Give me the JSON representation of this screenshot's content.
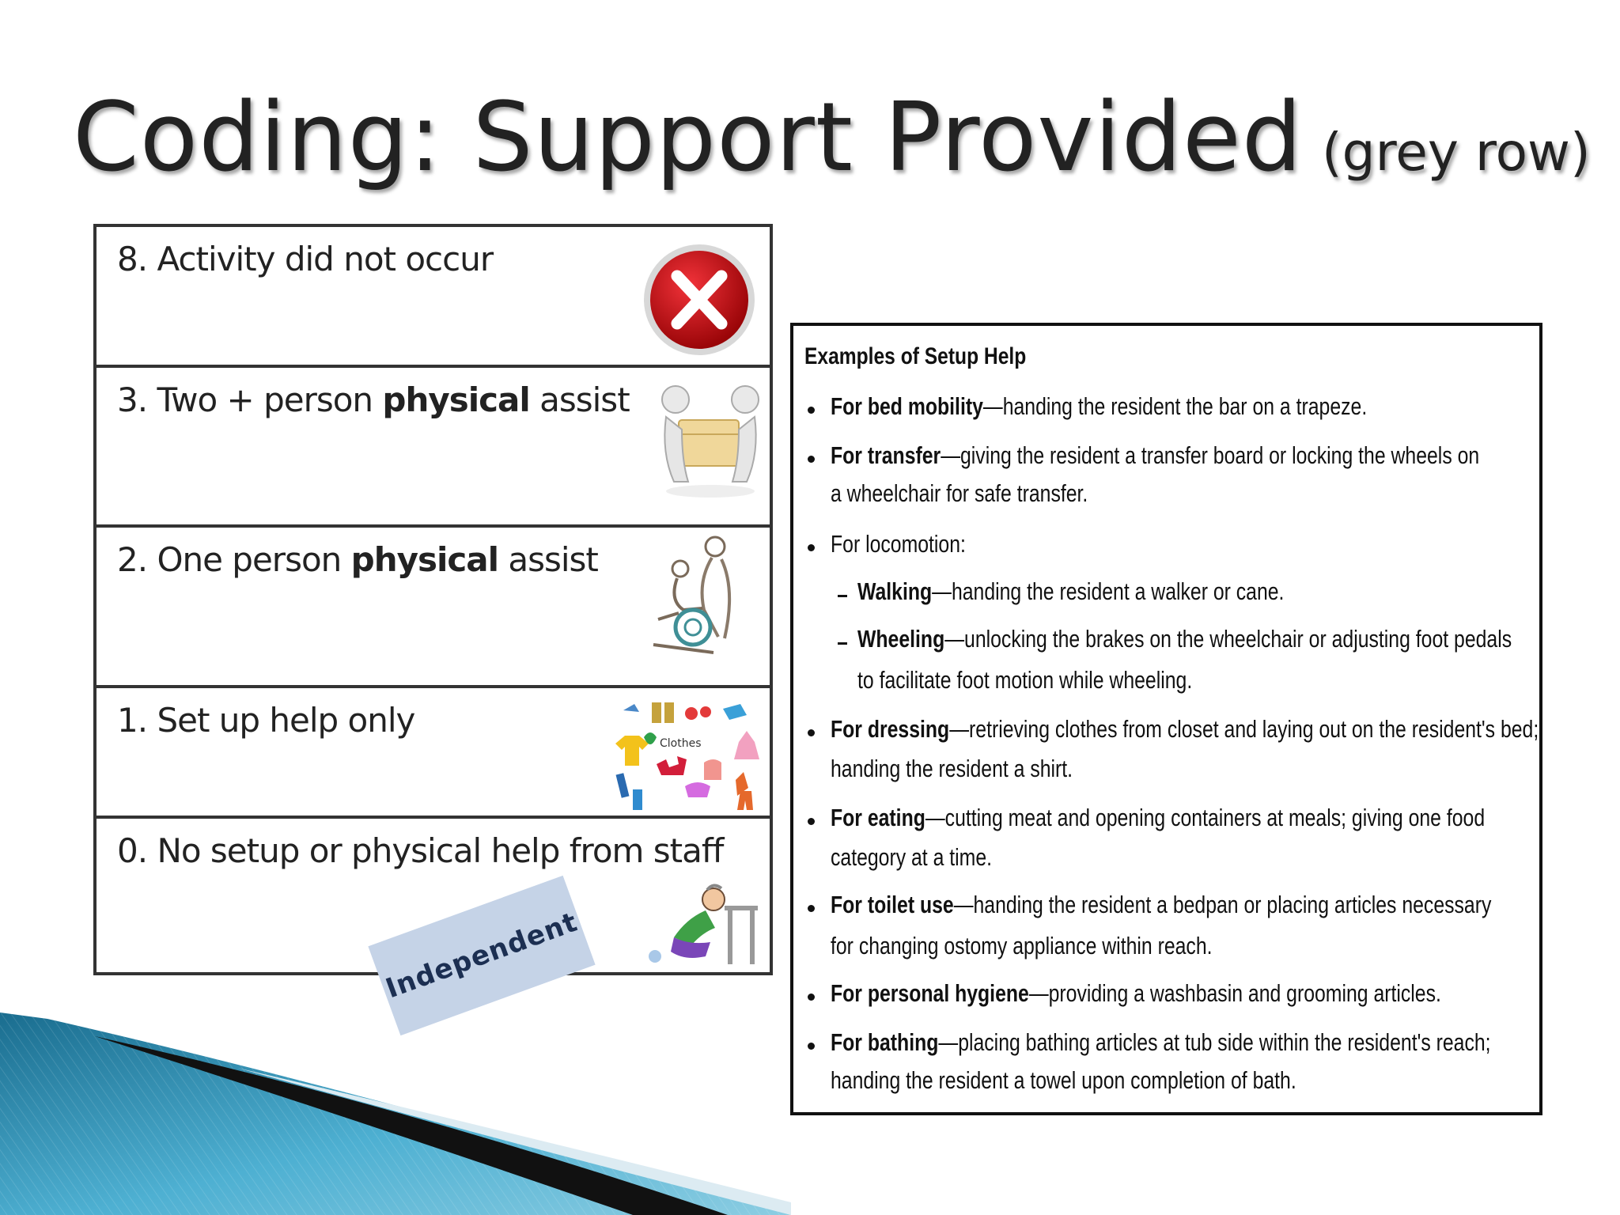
{
  "title": {
    "main": "Coding: Support Provided",
    "sub": "(grey row)"
  },
  "coding_table": {
    "rows": [
      {
        "number": "8.",
        "text": "Activity did not occur",
        "bold": "",
        "after": "",
        "icon": "red-x-icon"
      },
      {
        "number": "3.",
        "text": "Two + person",
        "bold": "physical",
        "after": "assist",
        "icon": "two-person-lift-icon"
      },
      {
        "number": "2.",
        "text": "One person",
        "bold": "physical",
        "after": "assist",
        "icon": "wheelchair-assist-icon"
      },
      {
        "number": "1.",
        "text": "Set up help only",
        "bold": "",
        "after": "",
        "icon": "clothes-icon",
        "icon_text": "Clothes"
      },
      {
        "number": "0.",
        "text": "No setup or physical help from staff",
        "bold": "",
        "after": "",
        "icon": "walker-person-icon"
      }
    ],
    "badge": "Independent"
  },
  "setup_help": {
    "heading": "Examples of Setup Help",
    "items": [
      {
        "bold": "For bed mobility",
        "text": "—handing the resident the bar on a trapeze.",
        "cont": ""
      },
      {
        "bold": "For transfer",
        "text": "—giving the resident a transfer board or locking the wheels on",
        "cont": "a wheelchair for safe transfer."
      },
      {
        "bold": "",
        "text": "For locomotion:",
        "cont": ""
      },
      {
        "bold": "Walking",
        "text": "—handing the resident a walker or cane.",
        "cont": ""
      },
      {
        "bold": "Wheeling",
        "text": "—unlocking the brakes on the wheelchair or adjusting foot pedals",
        "cont": "to facilitate foot motion while wheeling."
      },
      {
        "bold": "For dressing",
        "text": "—retrieving clothes from closet and laying out on the resident's bed;",
        "cont": "handing the resident a shirt."
      },
      {
        "bold": "For eating",
        "text": "—cutting meat and opening containers at meals; giving one food",
        "cont": "category at a time."
      },
      {
        "bold": "For toilet use",
        "text": "—handing the resident a bedpan or placing articles necessary",
        "cont": "for changing ostomy appliance within reach."
      },
      {
        "bold": "For personal hygiene",
        "text": "—providing a washbasin and grooming articles.",
        "cont": ""
      },
      {
        "bold": "For bathing",
        "text": "—placing bathing articles at tub side within the resident's reach;",
        "cont": "handing the resident a towel upon completion of bath."
      }
    ]
  },
  "colors": {
    "swoosh_blue": "#3d9dc0",
    "swoosh_black": "#111111",
    "badge_bg": "#c5d3e7",
    "x_red": "#d4111b"
  }
}
